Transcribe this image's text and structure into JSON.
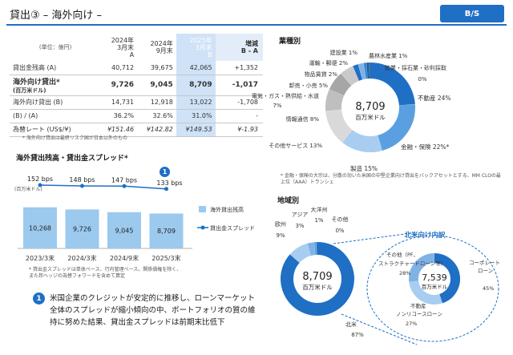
{
  "header": {
    "title": "貸出③ – 海外向け –",
    "badge": "B/S"
  },
  "table": {
    "unit_label": "(単位：億円)",
    "columns": [
      "2024年3月末 A",
      "2024年9月末",
      "2025年3月末 B",
      "増減 B - A"
    ],
    "col_lines": [
      [
        "2024年",
        "3月末",
        "A"
      ],
      [
        "2024年",
        "9月末",
        ""
      ],
      [
        "2025年",
        "3月末",
        "B"
      ],
      [
        "増減",
        "B - A",
        ""
      ]
    ],
    "rows": [
      {
        "label": "貸出金残高 (A)",
        "values": [
          "40,712",
          "39,675",
          "42,065",
          "+1,352"
        ]
      },
      {
        "label": "海外向け貸出*",
        "sub": "(百万米ドル)",
        "values": [
          "9,726",
          "9,045",
          "8,709",
          "-1,017"
        ]
      },
      {
        "label": "海外向け貸出 (B)",
        "values": [
          "14,731",
          "12,918",
          "13,022",
          "-1,708"
        ]
      },
      {
        "label": "(B) / (A)",
        "values": [
          "36.2%",
          "32.6%",
          "31.0%",
          "-"
        ]
      },
      {
        "label": "為替レート (US$/¥)",
        "values": [
          "¥151.46",
          "¥142.82",
          "¥149.53",
          "¥-1.93"
        ]
      }
    ],
    "note": "* 海外向け貸出は最終リスク国が日本以外のもの"
  },
  "spread_section": {
    "title": "海外貸出残高・貸出金スプレッド*",
    "unit": "(百万米ドル)",
    "legend_bar": "海外貸出残高",
    "legend_line": "貸出金スプレッド",
    "circle": "1",
    "note_lines": [
      "* 貸出金スプレッドは単体ベース、行内管理ベース。関係債権を除く、",
      "また邦ヘッジの為替フォワードを含めて算定"
    ]
  },
  "chart_data": [
    {
      "type": "bar",
      "categories": [
        "2023/3末",
        "2024/3末",
        "2024/9末",
        "2025/3末"
      ],
      "series": [
        {
          "name": "海外貸出残高",
          "values": [
            10268,
            9726,
            9045,
            8709
          ]
        },
        {
          "name": "貸出金スプレッド",
          "values": [
            152,
            148,
            147,
            133
          ],
          "labels": [
            "152 bps",
            "148 bps",
            "147 bps",
            "133 bps"
          ]
        }
      ],
      "ylabel": "(百万米ドル)",
      "legend": "right"
    },
    {
      "type": "pie",
      "title": "業種別",
      "center_value": "8,709",
      "center_unit": "百万米ドル",
      "slices": [
        {
          "label": "不動産",
          "value": 24,
          "text": "不動産 24%"
        },
        {
          "label": "金融・保険",
          "value": 22,
          "text": "金融・保険 22%*"
        },
        {
          "label": "製造",
          "value": 15,
          "text": "製造 15%"
        },
        {
          "label": "その他サービス",
          "value": 13,
          "text": "その他サービス 13%"
        },
        {
          "label": "情報通信",
          "value": 8,
          "text": "情報通信 8%"
        },
        {
          "label": "電気・ガス・熱供給・水道",
          "value": 7,
          "text": "電気・ガス・熱供給・水道 7%"
        },
        {
          "label": "卸売・小売",
          "value": 5,
          "text": "卸売・小売 5%"
        },
        {
          "label": "物品賃貸",
          "value": 2,
          "text": "物品賃貸 2%"
        },
        {
          "label": "運輸・郵便",
          "value": 2,
          "text": "運輸・郵便 2%"
        },
        {
          "label": "建設業",
          "value": 1,
          "text": "建設業 1%"
        },
        {
          "label": "農林水産業",
          "value": 1,
          "text": "農林水産業 1%"
        },
        {
          "label": "鉱業・採石業・砂利採取",
          "value": 0,
          "text": "鉱業・採石業・砂利採取 0%"
        }
      ],
      "note": "* 金融・保険の大宗は、分散の効いた米国の中堅企業向け貸出をバックアセットとする、MM CLOの最上位（AAA）トランシェ"
    },
    {
      "type": "pie",
      "title": "地域別",
      "center_value": "8,709",
      "center_unit": "百万米ドル",
      "slices": [
        {
          "label": "北米",
          "value": 87,
          "text": "北米 87%"
        },
        {
          "label": "欧州",
          "value": 9,
          "text": "欧州 9%"
        },
        {
          "label": "アジア",
          "value": 3,
          "text": "アジア 3%"
        },
        {
          "label": "大洋州",
          "value": 1,
          "text": "大洋州 1%"
        },
        {
          "label": "その他",
          "value": 0,
          "text": "その他 0%"
        }
      ]
    },
    {
      "type": "pie",
      "title": "北米向け内訳",
      "center_value": "7,539",
      "center_unit": "百万米ドル",
      "slices": [
        {
          "label": "コーポレートローン",
          "value": 45,
          "text": "コーポレートローン 45%"
        },
        {
          "label": "その他",
          "value": 28,
          "text": "その他（PF、ストラクチャードローン等） 28%"
        },
        {
          "label": "不動産ノンリコースローン",
          "value": 27,
          "text": "不動産ノンリコースローン 27%"
        }
      ]
    }
  ],
  "summary": {
    "circle": "1",
    "text": "米国企業のクレジットが安定的に推移し、ローンマーケット全体のスプレッドが縮小傾向の中、ポートフォリオの質の維持に努めた結果、貸出金スプレッドは前期末比低下"
  },
  "colors": {
    "accent": "#1f6fc5",
    "light": "#9cc9ee"
  }
}
